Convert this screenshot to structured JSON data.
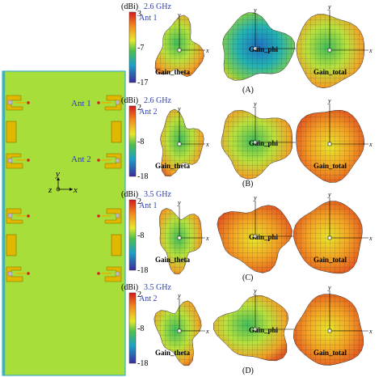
{
  "colors": {
    "board": "#a8de3a",
    "board_edge": "#3ab0c8",
    "trace": "#e0b800",
    "trace_edge": "#8a6a00",
    "feed": "#d42020",
    "label_blue": "#2a3eb1",
    "mesh_line": "#222222"
  },
  "board": {
    "ant1_label": "Ant 1",
    "ant2_label": "Ant 2",
    "axis_y": "y",
    "axis_z": "z",
    "axis_x": "x"
  },
  "panels": [
    {
      "freq": "2.6 GHz",
      "ant": "Ant 1",
      "unit": "(dBi)",
      "ticks": [
        "3",
        "-7",
        "-17"
      ],
      "tag": "(A)",
      "labels": [
        "Gain_theta",
        "Gain_phi",
        "Gain_total"
      ]
    },
    {
      "freq": "2.6 GHz",
      "ant": "Ant 2",
      "unit": "(dBi)",
      "ticks": [
        "2",
        "-8",
        "-18"
      ],
      "tag": "(B)",
      "labels": [
        "Gain_theta",
        "Gain_phi",
        "Gain_total"
      ]
    },
    {
      "freq": "3.5 GHz",
      "ant": "Ant 1",
      "unit": "(dBi)",
      "ticks": [
        "2",
        "-8",
        "-18"
      ],
      "tag": "(C)",
      "labels": [
        "Gain_theta",
        "Gain_phi",
        "Gain_total"
      ]
    },
    {
      "freq": "3.5 GHz",
      "ant": "Ant 2",
      "unit": "(dBi)",
      "ticks": [
        "2",
        "-8",
        "-18"
      ],
      "tag": "(D)",
      "labels": [
        "Gain_theta",
        "Gain_phi",
        "Gain_total"
      ]
    }
  ],
  "axis_letters": {
    "x": "x",
    "y": "y",
    "z": "z"
  },
  "icons": [
    "antenna-board",
    "colorbar",
    "radiation-pattern-3d"
  ]
}
